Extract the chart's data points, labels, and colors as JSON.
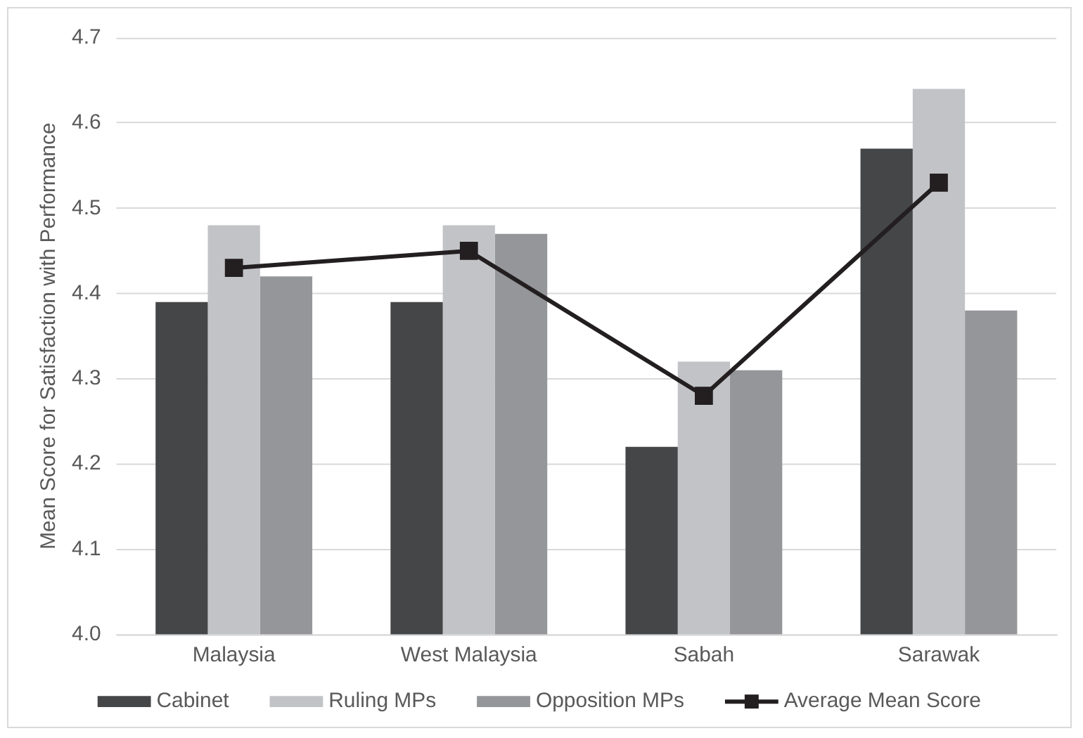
{
  "chart_data": {
    "type": "bar",
    "ylabel": "Mean Score for Satisfaction with Performance",
    "categories": [
      "Malaysia",
      "West Malaysia",
      "Sabah",
      "Sarawak"
    ],
    "ylim": [
      4.0,
      4.7
    ],
    "yticks": [
      {
        "value": 4.0,
        "label": "4.0"
      },
      4.1,
      4.2,
      4.3,
      4.4,
      4.5,
      4.6,
      4.7
    ],
    "grid": "y",
    "legend": "bottom",
    "series": [
      {
        "name": "Cabinet",
        "color": "#454648",
        "values": [
          4.39,
          4.39,
          4.22,
          4.57
        ]
      },
      {
        "name": "Ruling MPs",
        "color": "#c2c3c6",
        "values": [
          4.48,
          4.48,
          4.32,
          4.64
        ]
      },
      {
        "name": "Opposition MPs",
        "color": "#95969a",
        "values": [
          4.42,
          4.47,
          4.31,
          4.38
        ]
      },
      {
        "name": "Average Mean Score",
        "type": "line",
        "marker": "square",
        "color": "#231f20",
        "values": [
          4.43,
          4.45,
          4.28,
          4.53
        ]
      }
    ]
  }
}
